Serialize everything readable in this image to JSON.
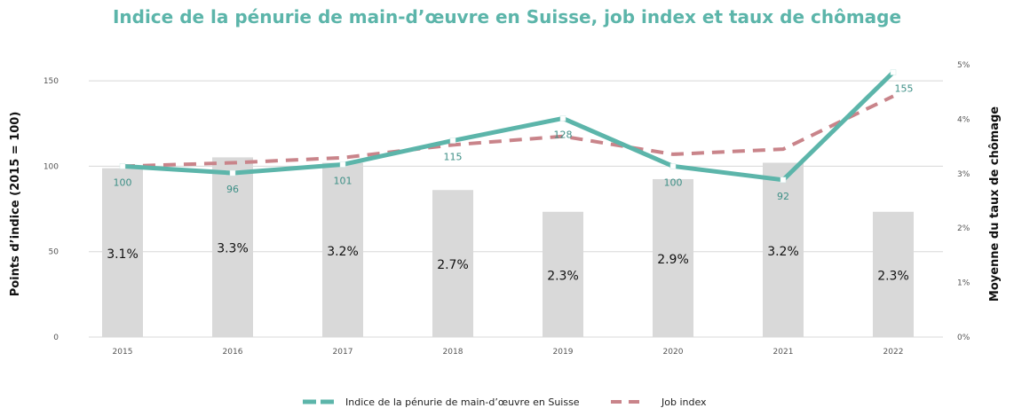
{
  "chart_data": {
    "type": "bar+line",
    "title": "Indice de la pénurie de main-d’œuvre en Suisse, job index et taux de chômage",
    "categories": [
      "2015",
      "2016",
      "2017",
      "2018",
      "2019",
      "2020",
      "2021",
      "2022"
    ],
    "ylabel_left": "Points d’indice (2015 = 100)",
    "ylabel_right": "Moyenne du taux de chômage",
    "yticks_left": [
      0,
      50,
      100,
      150
    ],
    "yticks_right": [
      "0%",
      "1%",
      "2%",
      "3%",
      "4%",
      "5%"
    ],
    "ylim_left": [
      0,
      159.4
    ],
    "ylim_right": [
      0,
      5
    ],
    "grid": true,
    "legend_position": "bottom",
    "bars": {
      "axis": "right",
      "values": [
        3.1,
        3.3,
        3.2,
        2.7,
        2.3,
        2.9,
        3.2,
        2.3
      ],
      "labels": [
        "3.1%",
        "3.3%",
        "3.2%",
        "2.7%",
        "2.3%",
        "2.9%",
        "3.2%",
        "2.3%"
      ],
      "color": "#d9d9d9"
    },
    "series": [
      {
        "name": "Indice de la pénurie de main-d’œuvre en Suisse",
        "axis": "left",
        "values": [
          100,
          96,
          101,
          115,
          128,
          100,
          92,
          155
        ],
        "labels": [
          "100",
          "96",
          "101",
          "115",
          "128",
          "100",
          "92",
          "155"
        ],
        "color": "#5cb5aa",
        "style": "solid"
      },
      {
        "name": "Job index",
        "axis": "left",
        "values": [
          100,
          102,
          105,
          112.5,
          117.5,
          107,
          110,
          141
        ],
        "color": "#c9848a",
        "style": "dashed"
      }
    ]
  }
}
